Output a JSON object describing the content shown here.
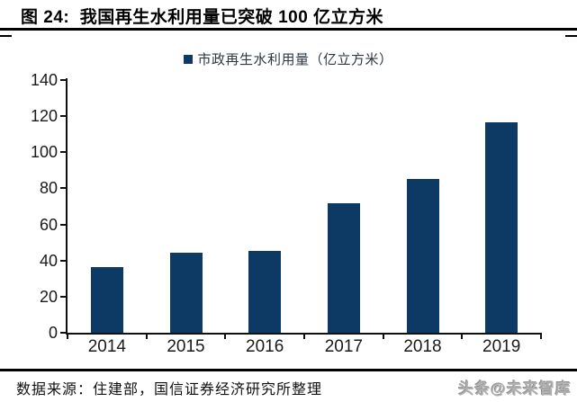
{
  "header": {
    "title": "图 24:  我国再生水利用量已突破 100 亿立方米"
  },
  "chart_data": {
    "type": "bar",
    "title": "我国再生水利用量已突破 100 亿立方米",
    "legend": "市政再生水利用量（亿立方米）",
    "legend_position": "top-center",
    "categories": [
      "2014",
      "2015",
      "2016",
      "2017",
      "2018",
      "2019"
    ],
    "values": [
      36.2,
      44.4,
      45.4,
      71.6,
      85.4,
      116.4
    ],
    "xlabel": "",
    "ylabel": "",
    "ylim": [
      0,
      140
    ],
    "yticks": [
      0,
      20,
      40,
      60,
      80,
      100,
      120,
      140
    ],
    "grid": false,
    "bar_color": "#0D3A64"
  },
  "footer": {
    "source": "数据来源：住建部，国信证券经济研究所整理",
    "watermark": "头条@未来智库"
  }
}
